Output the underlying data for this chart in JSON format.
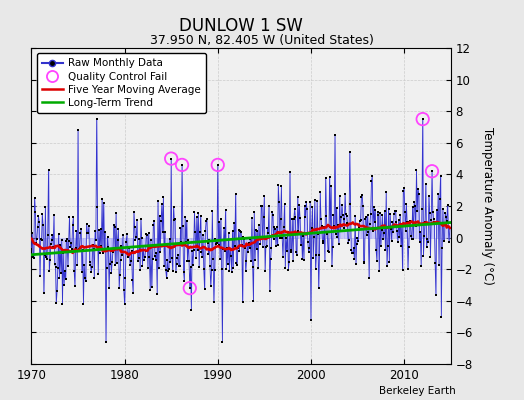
{
  "title": "DUNLOW 1 SW",
  "subtitle": "37.950 N, 82.405 W (United States)",
  "ylabel": "Temperature Anomaly (°C)",
  "credit": "Berkeley Earth",
  "xlim": [
    1970,
    2015
  ],
  "ylim": [
    -8,
    12
  ],
  "yticks": [
    -8,
    -6,
    -4,
    -2,
    0,
    2,
    4,
    6,
    8,
    10,
    12
  ],
  "xticks": [
    1970,
    1980,
    1990,
    2000,
    2010
  ],
  "fig_bg_color": "#e8e8e8",
  "plot_bg_color": "#f0f0f0",
  "raw_line_color": "#3333cc",
  "raw_fill_color": "#aaaaff",
  "raw_marker_color": "#000000",
  "ma_color": "#dd0000",
  "trend_color": "#00aa00",
  "qc_color": "#ff44ff",
  "grid_color": "#cccccc",
  "seed": 12345
}
